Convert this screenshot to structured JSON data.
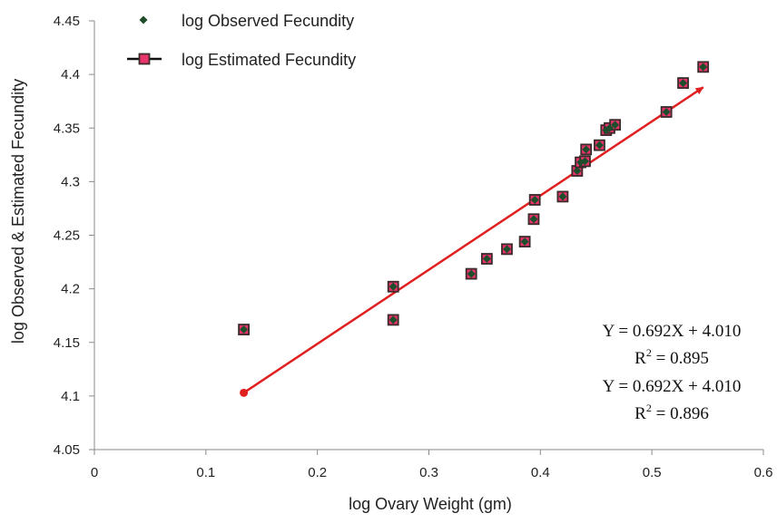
{
  "chart_data": {
    "type": "scatter",
    "xlabel": "log Ovary Weight (gm)",
    "ylabel": "log Observed & Estimated Fecundity",
    "xlim": [
      0,
      0.6
    ],
    "ylim": [
      4.05,
      4.45
    ],
    "x_ticks": [
      0,
      0.1,
      0.2,
      0.3,
      0.4,
      0.5,
      0.6
    ],
    "y_ticks": [
      4.05,
      4.1,
      4.15,
      4.2,
      4.25,
      4.3,
      4.35,
      4.4,
      4.45
    ],
    "x_tick_labels": [
      "0",
      "0.1",
      "0.2",
      "0.3",
      "0.4",
      "0.5",
      "0.6"
    ],
    "y_tick_labels": [
      "4.05",
      "4.1",
      "4.15",
      "4.2",
      "4.25",
      "4.3",
      "4.35",
      "4.4",
      "4.45"
    ],
    "grid": false,
    "legend_position": "top-left",
    "series": [
      {
        "name": "log Observed Fecundity",
        "marker": "diamond",
        "color": "#1e4d2b",
        "points": [
          [
            0.134,
            4.162
          ],
          [
            0.268,
            4.202
          ],
          [
            0.268,
            4.171
          ],
          [
            0.338,
            4.214
          ],
          [
            0.352,
            4.228
          ],
          [
            0.37,
            4.237
          ],
          [
            0.386,
            4.244
          ],
          [
            0.394,
            4.265
          ],
          [
            0.395,
            4.283
          ],
          [
            0.42,
            4.286
          ],
          [
            0.433,
            4.31
          ],
          [
            0.436,
            4.318
          ],
          [
            0.44,
            4.319
          ],
          [
            0.441,
            4.33
          ],
          [
            0.453,
            4.334
          ],
          [
            0.459,
            4.348
          ],
          [
            0.462,
            4.35
          ],
          [
            0.467,
            4.353
          ],
          [
            0.513,
            4.365
          ],
          [
            0.528,
            4.392
          ],
          [
            0.546,
            4.407
          ]
        ]
      },
      {
        "name": "log Estimated Fecundity",
        "marker": "square",
        "color": "#e8336b",
        "points": [
          [
            0.134,
            4.162
          ],
          [
            0.268,
            4.202
          ],
          [
            0.268,
            4.171
          ],
          [
            0.338,
            4.214
          ],
          [
            0.352,
            4.228
          ],
          [
            0.37,
            4.237
          ],
          [
            0.386,
            4.244
          ],
          [
            0.394,
            4.265
          ],
          [
            0.395,
            4.283
          ],
          [
            0.42,
            4.286
          ],
          [
            0.433,
            4.31
          ],
          [
            0.436,
            4.318
          ],
          [
            0.44,
            4.319
          ],
          [
            0.441,
            4.33
          ],
          [
            0.453,
            4.334
          ],
          [
            0.459,
            4.348
          ],
          [
            0.462,
            4.35
          ],
          [
            0.467,
            4.353
          ],
          [
            0.513,
            4.365
          ],
          [
            0.528,
            4.392
          ],
          [
            0.546,
            4.407
          ]
        ]
      }
    ],
    "regression_line": {
      "color": "#e02020",
      "x1": 0.134,
      "y1": 4.103,
      "x2": 0.546,
      "y2": 4.388
    },
    "annotations": [
      {
        "prefix": "Y = 0.692X + 4.010"
      },
      {
        "prefix": "R",
        "sup": "2",
        "suffix": " = 0.895"
      },
      {
        "prefix": "Y = 0.692X + 4.010"
      },
      {
        "prefix": "R",
        "sup": "2",
        "suffix": " = 0.896"
      }
    ]
  }
}
